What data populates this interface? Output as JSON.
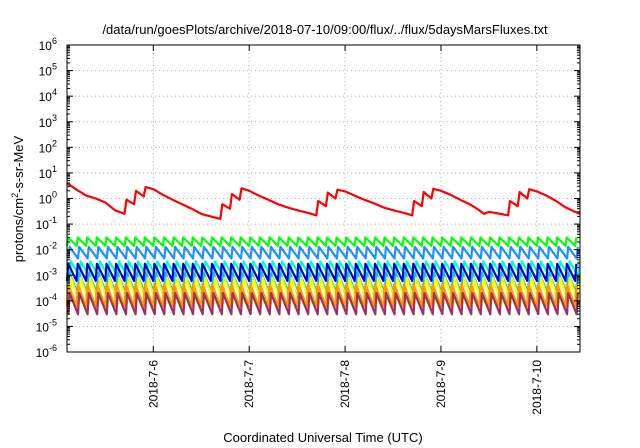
{
  "chart_data": {
    "type": "line",
    "title": "/data/run/goesPlots/archive/2018-07-10/09:00/flux/../flux/5daysMarsFluxes.txt",
    "xlabel": "Coordinated Universal Time (UTC)",
    "ylabel_main": "protons/cm",
    "ylabel_sup": "2",
    "ylabel_rest": "-s-sr-MeV",
    "yscale": "log",
    "ylim_exp": [
      -6,
      6
    ],
    "xlim_days": [
      5.1,
      10.45
    ],
    "x_ticks": [
      {
        "day": 6,
        "label": "2018-7-6"
      },
      {
        "day": 7,
        "label": "2018-7-7"
      },
      {
        "day": 8,
        "label": "2018-7-8"
      },
      {
        "day": 9,
        "label": "2018-7-9"
      },
      {
        "day": 10,
        "label": "2018-7-10"
      }
    ],
    "y_ticks": [
      {
        "exp": -6,
        "base": "10",
        "sup": "-6"
      },
      {
        "exp": -5,
        "base": "10",
        "sup": "-5"
      },
      {
        "exp": -4,
        "base": "10",
        "sup": "-4"
      },
      {
        "exp": -3,
        "base": "10",
        "sup": "-3"
      },
      {
        "exp": -2,
        "base": "10",
        "sup": "-2"
      },
      {
        "exp": -1,
        "base": "10",
        "sup": "-1"
      },
      {
        "exp": 0,
        "base": "10",
        "sup": "0"
      },
      {
        "exp": 1,
        "base": "10",
        "sup": "1"
      },
      {
        "exp": 2,
        "base": "10",
        "sup": "2"
      },
      {
        "exp": 3,
        "base": "10",
        "sup": "3"
      },
      {
        "exp": 4,
        "base": "10",
        "sup": "4"
      },
      {
        "exp": 5,
        "base": "10",
        "sup": "5"
      },
      {
        "exp": 6,
        "base": "10",
        "sup": "6"
      }
    ],
    "grid": true,
    "red_series": {
      "color": "#ff0000",
      "day": [
        5.1,
        5.15,
        5.2,
        5.3,
        5.4,
        5.5,
        5.6,
        5.7,
        5.72,
        5.8,
        5.82,
        5.9,
        5.92,
        6.0,
        6.1,
        6.2,
        6.3,
        6.4,
        6.5,
        6.6,
        6.7,
        6.72,
        6.8,
        6.82,
        6.9,
        6.92,
        7.0,
        7.1,
        7.2,
        7.3,
        7.4,
        7.5,
        7.6,
        7.7,
        7.72,
        7.8,
        7.82,
        7.9,
        7.92,
        8.0,
        8.1,
        8.2,
        8.3,
        8.4,
        8.5,
        8.6,
        8.7,
        8.72,
        8.8,
        8.82,
        8.9,
        8.92,
        9.0,
        9.1,
        9.2,
        9.3,
        9.4,
        9.45
      ],
      "flux": [
        4.0,
        3.0,
        2.2,
        1.3,
        1.0,
        0.7,
        0.35,
        0.25,
        0.9,
        0.6,
        2.0,
        1.2,
        2.8,
        2.3,
        1.4,
        0.9,
        0.6,
        0.4,
        0.25,
        0.2,
        0.16,
        0.6,
        0.4,
        1.5,
        0.9,
        2.5,
        2.0,
        1.3,
        0.9,
        0.6,
        0.45,
        0.35,
        0.28,
        0.22,
        0.8,
        0.5,
        1.7,
        1.0,
        2.2,
        1.9,
        1.3,
        0.9,
        0.65,
        0.45,
        0.35,
        0.28,
        0.22,
        0.8,
        0.5,
        1.8,
        1.0,
        2.4,
        2.0,
        1.4,
        0.9,
        0.6,
        0.35,
        0.25
      ]
    },
    "sawtooth_series": [
      {
        "color": "#00ff00",
        "peak": 0.03,
        "trough": 0.014
      },
      {
        "color": "#1e90ff",
        "peak": 0.013,
        "trough": 0.0045
      },
      {
        "color": "#00ffcc",
        "peak": 0.0035,
        "trough": 0.0009
      },
      {
        "color": "#0000cd",
        "peak": 0.0028,
        "trough": 0.0006
      },
      {
        "color": "#00bfff",
        "peak": 0.0012,
        "trough": 0.00018
      },
      {
        "color": "#ffff00",
        "peak": 0.0008,
        "trough": 8e-05
      },
      {
        "color": "#ff9900",
        "peak": 0.00045,
        "trough": 6e-05
      },
      {
        "color": "#993366",
        "peak": 0.0002,
        "trough": 3e-05
      }
    ],
    "sawtooth_period_days": 0.1
  }
}
